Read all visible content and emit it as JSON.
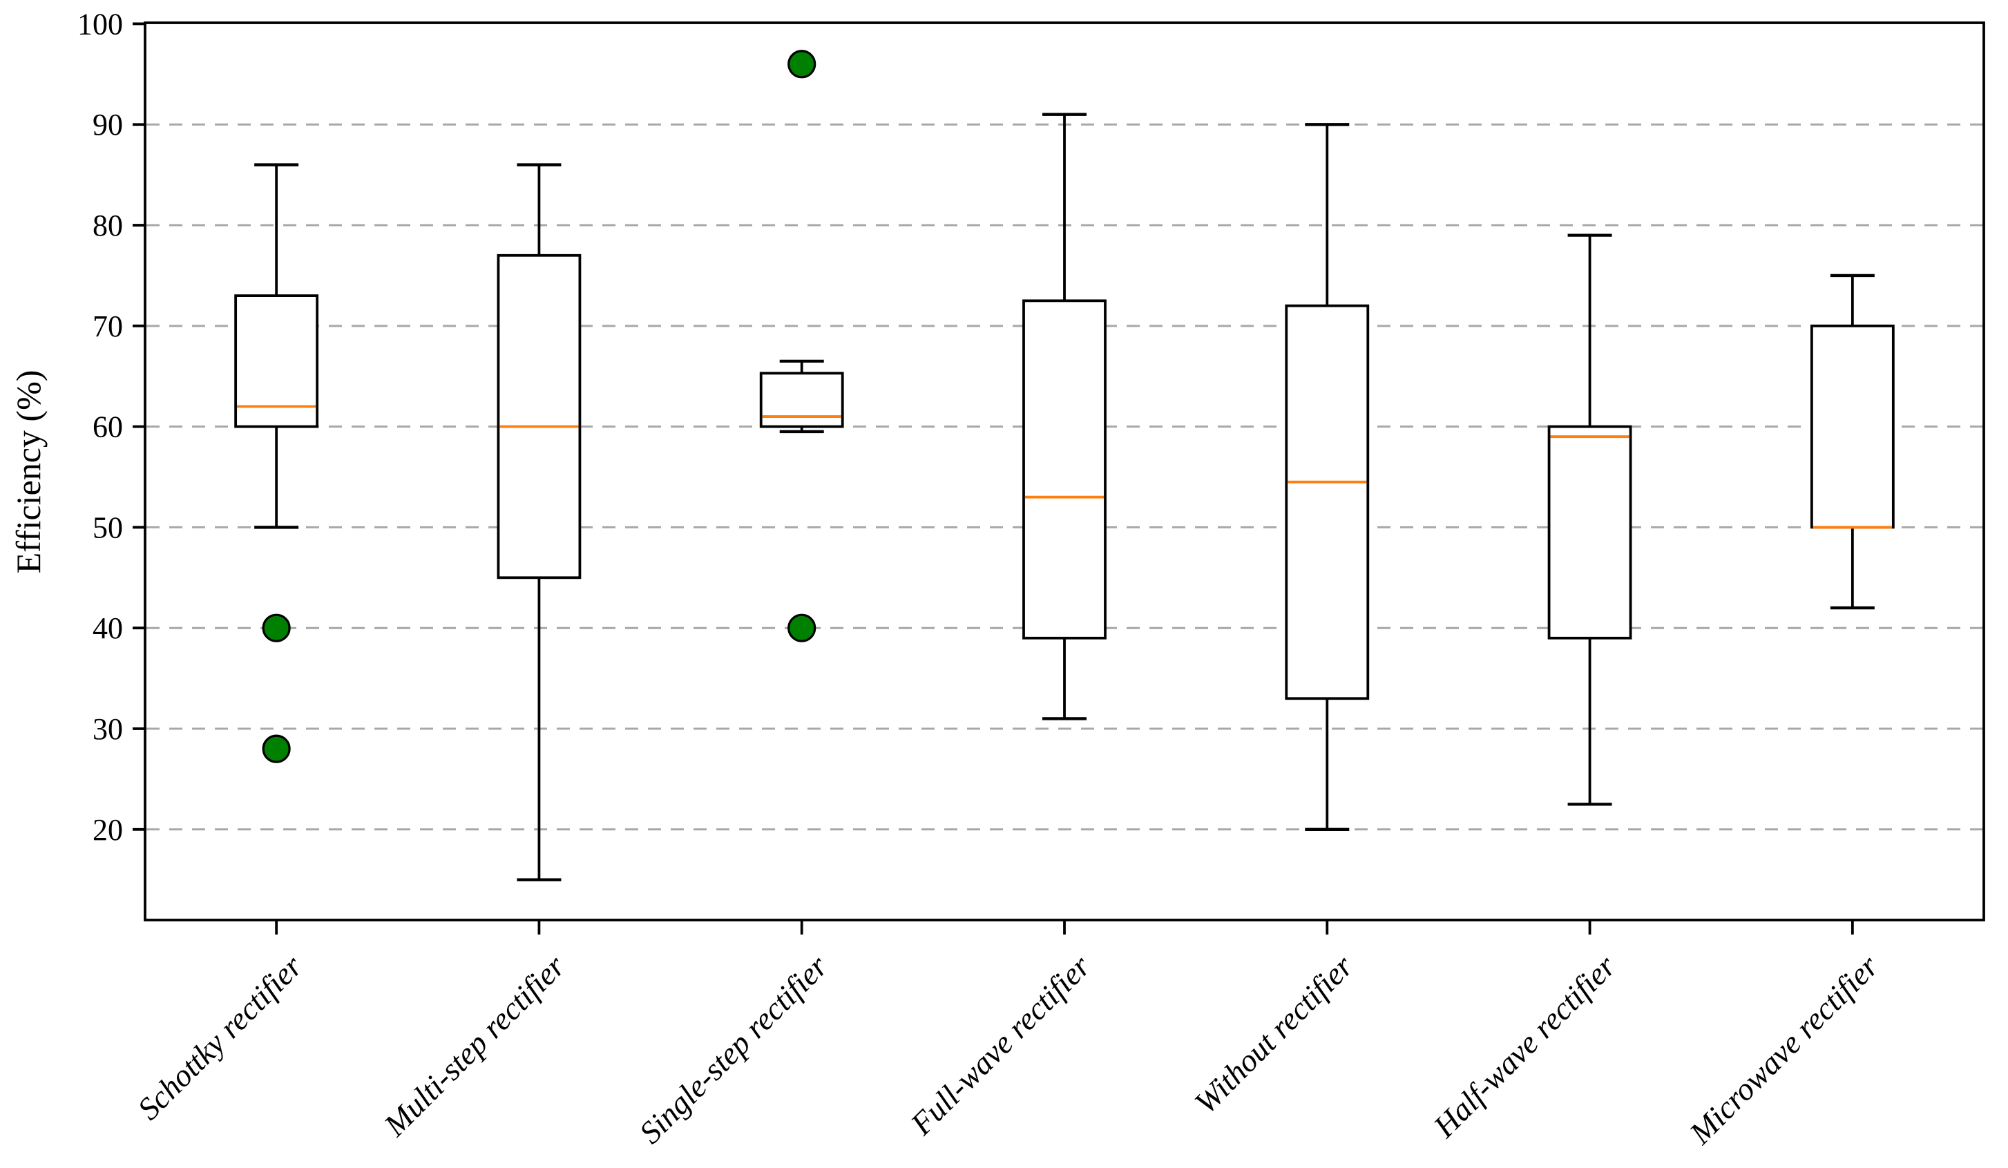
{
  "chart_data": {
    "type": "box",
    "title": "",
    "xlabel": "",
    "ylabel": "Efficiency (%)",
    "categories": [
      "Schottky rectifier",
      "Multi-step rectifier",
      "Single-step rectifier",
      "Full-wave rectifier",
      "Without rectifier",
      "Half-wave rectifier",
      "Microwave rectifier"
    ],
    "series": [
      {
        "name": "Schottky rectifier",
        "whisker_low": 50,
        "q1": 60,
        "median": 62,
        "q3": 73,
        "whisker_high": 86,
        "outliers": [
          40,
          28
        ]
      },
      {
        "name": "Multi-step rectifier",
        "whisker_low": 15,
        "q1": 45,
        "median": 60,
        "q3": 77,
        "whisker_high": 86,
        "outliers": []
      },
      {
        "name": "Single-step rectifier",
        "whisker_low": 59.5,
        "q1": 60,
        "median": 61,
        "q3": 65.3,
        "whisker_high": 66.5,
        "outliers": [
          96,
          40
        ]
      },
      {
        "name": "Full-wave rectifier",
        "whisker_low": 31,
        "q1": 39,
        "median": 53,
        "q3": 72.5,
        "whisker_high": 91,
        "outliers": []
      },
      {
        "name": "Without rectifier",
        "whisker_low": 20,
        "q1": 33,
        "median": 54.5,
        "q3": 72,
        "whisker_high": 90,
        "outliers": []
      },
      {
        "name": "Half-wave rectifier",
        "whisker_low": 22.5,
        "q1": 39,
        "median": 59,
        "q3": 60,
        "whisker_high": 79,
        "outliers": []
      },
      {
        "name": "Microwave rectifier",
        "whisker_low": 42,
        "q1": 50,
        "median": 50,
        "q3": 70,
        "whisker_high": 75,
        "outliers": []
      }
    ],
    "yticks": [
      20,
      30,
      40,
      50,
      60,
      70,
      80,
      90,
      100
    ],
    "ylim": [
      11,
      100.1
    ],
    "grid": {
      "axis": "y",
      "style": "dashed",
      "on": true
    },
    "legend": {
      "visible": false
    },
    "colors": {
      "median": "#ff7f0e",
      "outlier_fill": "#008000",
      "outlier_edge": "#000000",
      "box_edge": "#000000",
      "box_fill": "#ffffff",
      "gridline": "#a8a8a8",
      "axis": "#000000"
    }
  }
}
